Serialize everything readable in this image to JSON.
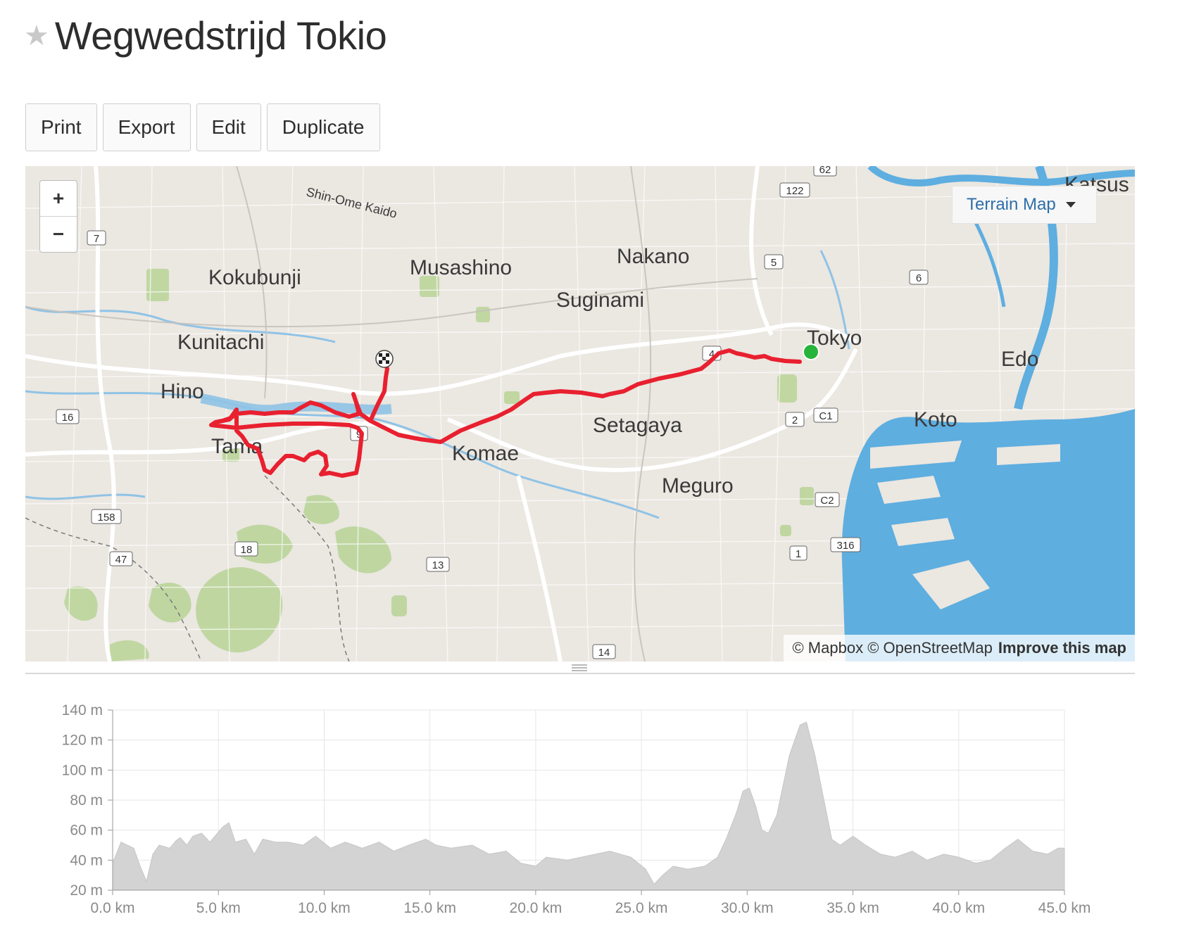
{
  "route": {
    "title": "Wegwedstrijd Tokio"
  },
  "toolbar": {
    "print": "Print",
    "export": "Export",
    "edit": "Edit",
    "duplicate": "Duplicate"
  },
  "map": {
    "zoom_in": "+",
    "zoom_out": "−",
    "layer": "Terrain Map",
    "attribution": {
      "mapbox": "© Mapbox",
      "osm": "© OpenStreetMap",
      "improve": "Improve this map"
    },
    "place_labels": [
      "Shin-Ome Kaido",
      "Kokubunji",
      "Musashino",
      "Nakano",
      "Suginami",
      "Kunitachi",
      "Tokyo",
      "Edo",
      "Katsus",
      "Hino",
      "Setagaya",
      "Koto",
      "Tama",
      "Komae",
      "Meguro"
    ],
    "road_shields": [
      "7",
      "122",
      "5",
      "6",
      "4",
      "16",
      "2",
      "C1",
      "9",
      "158",
      "C2",
      "316",
      "47",
      "18",
      "13",
      "1",
      "14",
      "62"
    ],
    "colors": {
      "route": "#e8202f",
      "start": "#27b43a",
      "water": "#5eaee0",
      "park": "#b3d08f",
      "land": "#ebe7e1"
    }
  },
  "chart_data": {
    "type": "area",
    "xlabel": "",
    "ylabel": "",
    "x_unit": "km",
    "y_unit": "m",
    "xlim": [
      0,
      45
    ],
    "ylim": [
      20,
      140
    ],
    "x_ticks": [
      "0.0 km",
      "5.0 km",
      "10.0 km",
      "15.0 km",
      "20.0 km",
      "25.0 km",
      "30.0 km",
      "35.0 km",
      "40.0 km",
      "45.0 km"
    ],
    "y_ticks": [
      "20 m",
      "40 m",
      "60 m",
      "80 m",
      "100 m",
      "120 m",
      "140 m"
    ],
    "grid": true,
    "x": [
      0,
      0.4,
      1.0,
      1.3,
      1.6,
      1.9,
      2.2,
      2.7,
      3.0,
      3.2,
      3.5,
      3.8,
      4.2,
      4.6,
      5.2,
      5.5,
      5.8,
      6.3,
      6.7,
      7.1,
      7.7,
      8.3,
      9.0,
      9.6,
      10.3,
      11.0,
      11.8,
      12.6,
      13.3,
      14.0,
      14.8,
      15.3,
      16.0,
      17.0,
      17.8,
      18.6,
      19.3,
      20.0,
      20.5,
      21.5,
      22.5,
      23.5,
      24.5,
      25.2,
      25.6,
      26.0,
      26.5,
      27.2,
      28.0,
      28.6,
      29.0,
      29.5,
      29.8,
      30.1,
      30.4,
      30.7,
      31.0,
      31.4,
      32.0,
      32.5,
      32.8,
      33.2,
      33.6,
      34.0,
      34.4,
      35.0,
      35.6,
      36.3,
      37.0,
      37.8,
      38.5,
      39.3,
      40.0,
      40.8,
      41.5,
      42.2,
      42.8,
      43.5,
      44.2,
      44.7,
      45.0
    ],
    "elevation": [
      38,
      52,
      48,
      36,
      26,
      44,
      50,
      48,
      53,
      55,
      50,
      56,
      58,
      52,
      62,
      65,
      52,
      54,
      44,
      54,
      52,
      52,
      50,
      56,
      48,
      52,
      48,
      52,
      46,
      50,
      54,
      50,
      48,
      50,
      44,
      46,
      38,
      36,
      42,
      40,
      43,
      46,
      42,
      34,
      24,
      30,
      36,
      34,
      36,
      42,
      54,
      72,
      86,
      88,
      76,
      60,
      58,
      70,
      110,
      130,
      132,
      110,
      82,
      54,
      50,
      56,
      50,
      44,
      42,
      46,
      40,
      44,
      42,
      38,
      40,
      48,
      54,
      46,
      44,
      48,
      48
    ]
  }
}
